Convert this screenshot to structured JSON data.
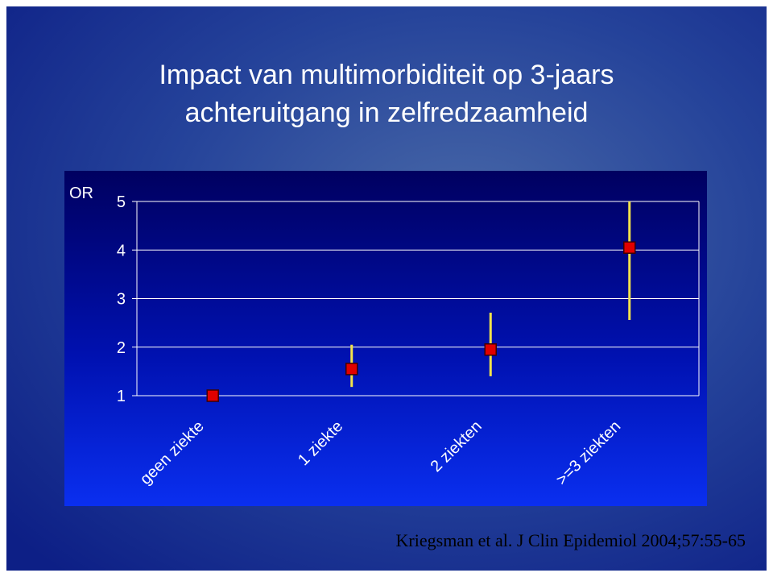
{
  "chart_data": {
    "type": "errorpoint",
    "title": [
      "Impact van multimorbiditeit op 3-jaars",
      "achteruitgang in zelfredzaamheid"
    ],
    "y_label": "OR",
    "categories": [
      "geen ziekte",
      "1 ziekte",
      "2 ziekten",
      ">=3 ziekten"
    ],
    "values": [
      1.0,
      1.55,
      1.95,
      4.05
    ],
    "ci_lower": [
      null,
      1.18,
      1.4,
      2.56
    ],
    "ci_upper": [
      null,
      2.05,
      2.71,
      5.0
    ],
    "color": "#e00000",
    "error_color": "#f2e34a",
    "ylim": [
      1,
      5
    ],
    "yticks": [
      1,
      2,
      3,
      4,
      5
    ],
    "grid": true,
    "source": "Kriegsman et al. J Clin Epidemiol 2004;57:55-65"
  }
}
